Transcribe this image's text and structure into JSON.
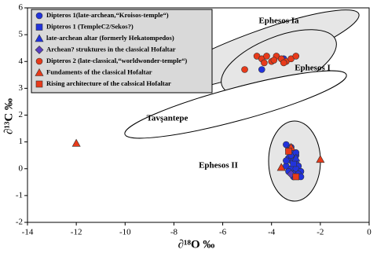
{
  "chart_data": {
    "type": "scatter",
    "x_label": "∂¹⁸O ‰",
    "y_label": "∂¹³C ‰",
    "xlim": [
      -14,
      0
    ],
    "xticks": [
      -14,
      -12,
      -10,
      -8,
      -6,
      -4,
      -2,
      0
    ],
    "ylim": [
      -2,
      6
    ],
    "yticks": [
      -2,
      -1,
      0,
      1,
      2,
      3,
      4,
      5,
      6
    ],
    "annotations": [
      "Ephesos Ia",
      "Ephesos I",
      "Tavşantepe",
      "Ephesos II"
    ],
    "series": [
      {
        "name": "Dipteros 1(late-archean,“Kroisos-temple“)",
        "color": "#2233dd",
        "marker": "circle",
        "x": [
          -4.4,
          -3.5,
          -3.4,
          -3.3,
          -3.2,
          -3.1,
          -3.0,
          -3.3,
          -3.2,
          -3.1,
          -3.0,
          -2.9,
          -3.4,
          -3.2,
          -3.0,
          -2.8,
          -3.3,
          -3.1,
          -2.9,
          -3.2,
          -3.0,
          -2.8,
          -3.4,
          -3.1
        ],
        "y": [
          3.7,
          4.1,
          0.9,
          0.7,
          0.8,
          0.6,
          0.5,
          0.4,
          0.3,
          0.3,
          0.2,
          0.1,
          0.1,
          0.0,
          0.0,
          -0.1,
          -0.1,
          -0.2,
          -0.2,
          0.5,
          0.6,
          -0.3,
          0.3,
          -0.3
        ]
      },
      {
        "name": "Dipteros 1 (TempleC2/Sekos?)",
        "color": "#2233dd",
        "marker": "square",
        "x": [
          -3.1
        ],
        "y": [
          0.2
        ]
      },
      {
        "name": "late-archean altar (formerly Hekatompedos)",
        "color": "#2233dd",
        "marker": "triangle",
        "x": [
          -3.0
        ],
        "y": [
          0.4
        ]
      },
      {
        "name": "Archean? struktures in the classical Hofaltar",
        "color": "#5a3fc0",
        "marker": "diamond",
        "x": [
          -3.2
        ],
        "y": [
          -0.2
        ]
      },
      {
        "name": "Dipteros 2 (late-classical,“worldwonder-temple“)",
        "color": "#e83a1a",
        "marker": "circle",
        "x": [
          -4.6,
          -4.4,
          -4.2,
          -4.0,
          -3.8,
          -3.6,
          -3.4,
          -3.2,
          -3.0,
          -4.3,
          -3.9,
          -3.5,
          -5.1
        ],
        "y": [
          4.2,
          4.1,
          4.2,
          4.0,
          4.2,
          4.1,
          4.0,
          4.1,
          4.2,
          3.95,
          4.05,
          3.95,
          3.7
        ]
      },
      {
        "name": "Fundaments of the classical Hofaltar",
        "color": "#e83a1a",
        "marker": "triangle",
        "x": [
          -12.0,
          -2.0,
          -3.6,
          -3.2
        ],
        "y": [
          0.95,
          0.35,
          0.05,
          0.8
        ]
      },
      {
        "name": "Rising architecture of the calssical Hofaltar",
        "color": "#e83a1a",
        "marker": "square",
        "x": [
          -3.3,
          -3.0
        ],
        "y": [
          0.65,
          -0.3
        ]
      }
    ]
  }
}
